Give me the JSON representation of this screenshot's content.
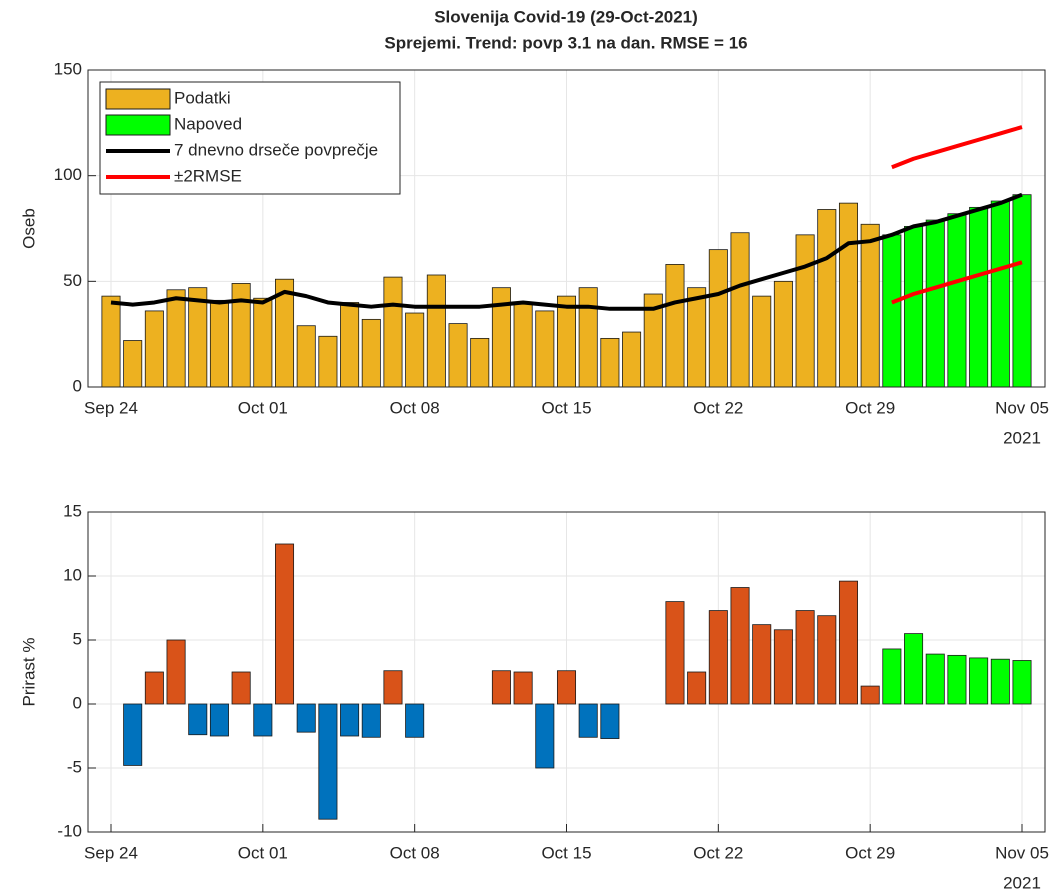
{
  "chart_data": [
    {
      "type": "bar",
      "title": "Slovenija Covid-19 (29-Oct-2021)",
      "subtitle": "Sprejemi. Trend: povp 3.1 na dan. RMSE = 16",
      "ylabel": "Oseb",
      "x_year_label": "2021",
      "categories": [
        "Sep 24",
        null,
        null,
        null,
        null,
        null,
        null,
        "Oct 01",
        null,
        null,
        null,
        null,
        null,
        null,
        "Oct 08",
        null,
        null,
        null,
        null,
        null,
        null,
        "Oct 15",
        null,
        null,
        null,
        null,
        null,
        null,
        "Oct 22",
        null,
        null,
        null,
        null,
        null,
        null,
        "Oct 29",
        null,
        null,
        null,
        null,
        null,
        null,
        "Nov 05"
      ],
      "ylim": [
        0,
        150
      ],
      "yticks": [
        0,
        50,
        100,
        150
      ],
      "grid": true,
      "legend": "northwest",
      "series": [
        {
          "name": "Podatki",
          "kind": "bar",
          "color": "#edb120",
          "values": [
            43,
            22,
            36,
            46,
            47,
            41,
            49,
            42,
            51,
            29,
            24,
            40,
            32,
            52,
            35,
            53,
            30,
            23,
            47,
            40,
            36,
            43,
            47,
            23,
            26,
            44,
            58,
            47,
            65,
            73,
            43,
            50,
            72,
            84,
            87,
            77,
            null,
            null,
            null,
            null,
            null,
            null,
            null
          ]
        },
        {
          "name": "Napoved",
          "kind": "bar",
          "color": "#00ff00",
          "values": [
            null,
            null,
            null,
            null,
            null,
            null,
            null,
            null,
            null,
            null,
            null,
            null,
            null,
            null,
            null,
            null,
            null,
            null,
            null,
            null,
            null,
            null,
            null,
            null,
            null,
            null,
            null,
            null,
            null,
            null,
            null,
            null,
            null,
            null,
            null,
            null,
            72,
            76,
            79,
            82,
            85,
            88,
            91
          ]
        },
        {
          "name": "7 dnevno drseče povprečje",
          "kind": "line",
          "color": "#000000",
          "values": [
            40,
            39,
            40,
            42,
            41,
            40,
            41,
            40,
            45,
            43,
            40,
            39,
            38,
            39,
            38,
            38,
            38,
            38,
            39,
            40,
            39,
            38,
            38,
            37,
            37,
            37,
            40,
            42,
            44,
            48,
            51,
            54,
            57,
            61,
            68,
            69,
            72,
            76,
            78,
            81,
            84,
            87,
            91
          ]
        },
        {
          "name": "±2RMSE",
          "kind": "line",
          "color": "#ff0000",
          "values": [
            null,
            null,
            null,
            null,
            null,
            null,
            null,
            null,
            null,
            null,
            null,
            null,
            null,
            null,
            null,
            null,
            null,
            null,
            null,
            null,
            null,
            null,
            null,
            null,
            null,
            null,
            null,
            null,
            null,
            null,
            null,
            null,
            null,
            null,
            null,
            null,
            104,
            108,
            111,
            114,
            117,
            120,
            123
          ],
          "lower": [
            null,
            null,
            null,
            null,
            null,
            null,
            null,
            null,
            null,
            null,
            null,
            null,
            null,
            null,
            null,
            null,
            null,
            null,
            null,
            null,
            null,
            null,
            null,
            null,
            null,
            null,
            null,
            null,
            null,
            null,
            null,
            null,
            null,
            null,
            null,
            null,
            40,
            44,
            47,
            50,
            53,
            56,
            59
          ]
        }
      ]
    },
    {
      "type": "bar",
      "ylabel": "Prirast %",
      "x_year_label": "2021",
      "categories": [
        "Sep 24",
        null,
        null,
        null,
        null,
        null,
        null,
        "Oct 01",
        null,
        null,
        null,
        null,
        null,
        null,
        "Oct 08",
        null,
        null,
        null,
        null,
        null,
        null,
        "Oct 15",
        null,
        null,
        null,
        null,
        null,
        null,
        "Oct 22",
        null,
        null,
        null,
        null,
        null,
        null,
        "Oct 29",
        null,
        null,
        null,
        null,
        null,
        null,
        "Nov 05"
      ],
      "ylim": [
        -10,
        15
      ],
      "yticks": [
        -10,
        -5,
        0,
        5,
        10,
        15
      ],
      "grid": true,
      "series": [
        {
          "kind": "bar",
          "positive_color": "#d95319",
          "negative_color": "#0072bd",
          "values": [
            null,
            -4.8,
            2.5,
            5.0,
            -2.4,
            -2.5,
            2.5,
            -2.5,
            12.5,
            -2.2,
            -9.0,
            -2.5,
            -2.6,
            2.6,
            -2.6,
            0,
            0,
            0,
            2.6,
            2.5,
            -5.0,
            2.6,
            -2.6,
            -2.7,
            0,
            0,
            8.0,
            2.5,
            7.3,
            9.1,
            6.2,
            5.8,
            7.3,
            6.9,
            9.6,
            1.4,
            null,
            null,
            null,
            null,
            null,
            null,
            null
          ]
        },
        {
          "kind": "bar",
          "color": "#00ff00",
          "values": [
            null,
            null,
            null,
            null,
            null,
            null,
            null,
            null,
            null,
            null,
            null,
            null,
            null,
            null,
            null,
            null,
            null,
            null,
            null,
            null,
            null,
            null,
            null,
            null,
            null,
            null,
            null,
            null,
            null,
            null,
            null,
            null,
            null,
            null,
            null,
            null,
            4.3,
            5.5,
            3.9,
            3.8,
            3.6,
            3.5,
            3.4
          ]
        }
      ]
    }
  ]
}
